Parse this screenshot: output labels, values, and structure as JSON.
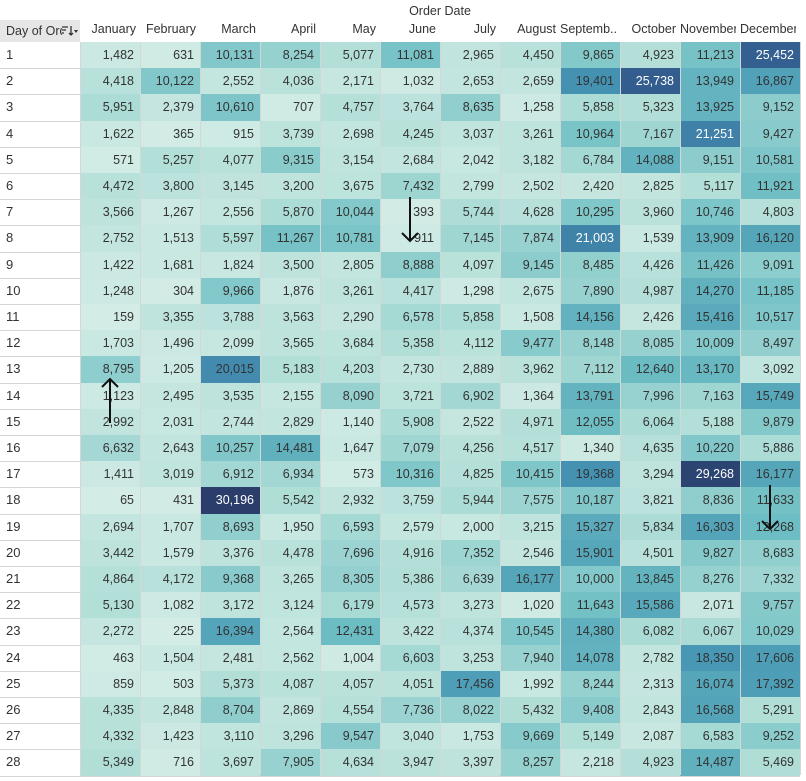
{
  "chart_data": {
    "type": "heatmap",
    "column_group_title": "Order Date",
    "row_header_title": "Day of Order Date",
    "columns": [
      "January",
      "February",
      "March",
      "April",
      "May",
      "June",
      "July",
      "August",
      "Septemb..",
      "October",
      "November",
      "December"
    ],
    "rows": [
      "1",
      "2",
      "3",
      "4",
      "5",
      "6",
      "7",
      "8",
      "9",
      "10",
      "11",
      "12",
      "13",
      "14",
      "15",
      "16",
      "17",
      "18",
      "19",
      "20",
      "21",
      "22",
      "23",
      "24",
      "25",
      "26",
      "27",
      "28"
    ],
    "values": [
      [
        1482,
        631,
        10131,
        8254,
        5077,
        11081,
        2965,
        4450,
        9865,
        4923,
        11213,
        25452
      ],
      [
        4418,
        10122,
        2552,
        4036,
        2171,
        1032,
        2653,
        2659,
        19401,
        25738,
        13949,
        16867
      ],
      [
        5951,
        2379,
        10610,
        707,
        4757,
        3764,
        8635,
        1258,
        5858,
        5323,
        13925,
        9152
      ],
      [
        1622,
        365,
        915,
        3739,
        2698,
        4245,
        3037,
        3261,
        10964,
        7167,
        21251,
        9427
      ],
      [
        571,
        5257,
        4077,
        9315,
        3154,
        2684,
        2042,
        3182,
        6784,
        14088,
        9151,
        10581
      ],
      [
        4472,
        3800,
        3145,
        3200,
        3675,
        7432,
        2799,
        2502,
        2420,
        2825,
        5117,
        11921
      ],
      [
        3566,
        1267,
        2556,
        5870,
        10044,
        393,
        5744,
        4628,
        10295,
        3960,
        10746,
        4803
      ],
      [
        2752,
        1513,
        5597,
        11267,
        10781,
        911,
        7145,
        7874,
        21003,
        1539,
        13909,
        16120
      ],
      [
        1422,
        1681,
        1824,
        3500,
        2805,
        8888,
        4097,
        9145,
        8485,
        4426,
        11426,
        9091
      ],
      [
        1248,
        304,
        9966,
        1876,
        3261,
        4417,
        1298,
        2675,
        7890,
        4987,
        14270,
        11185
      ],
      [
        159,
        3355,
        3788,
        3563,
        2290,
        6578,
        5858,
        1508,
        14156,
        2426,
        15416,
        10517
      ],
      [
        1703,
        1496,
        2099,
        3565,
        3684,
        5358,
        4112,
        9477,
        8148,
        8085,
        10009,
        8497
      ],
      [
        8795,
        1205,
        20015,
        5183,
        4203,
        2730,
        2889,
        3962,
        7112,
        12640,
        13170,
        3092
      ],
      [
        1123,
        2495,
        3535,
        2155,
        8090,
        3721,
        6902,
        1364,
        13791,
        7996,
        7163,
        15749
      ],
      [
        2992,
        2031,
        2744,
        2829,
        1140,
        5908,
        2522,
        4971,
        12055,
        6064,
        5188,
        9879
      ],
      [
        6632,
        2643,
        10257,
        14481,
        1647,
        7079,
        4256,
        4517,
        1340,
        4635,
        10220,
        5886
      ],
      [
        1411,
        3019,
        6912,
        6934,
        573,
        10316,
        4825,
        10415,
        19368,
        3294,
        29268,
        16177
      ],
      [
        65,
        431,
        30196,
        5542,
        2932,
        3759,
        5944,
        7575,
        10187,
        3821,
        8836,
        11633
      ],
      [
        2694,
        1707,
        8693,
        1950,
        6593,
        2579,
        2000,
        3215,
        15327,
        5834,
        16303,
        12268
      ],
      [
        3442,
        1579,
        3376,
        4478,
        7696,
        4916,
        7352,
        2546,
        15901,
        4501,
        9827,
        8683
      ],
      [
        4864,
        4172,
        9368,
        3265,
        8305,
        5386,
        6639,
        16177,
        10000,
        13845,
        8276,
        7332
      ],
      [
        5130,
        1082,
        3172,
        3124,
        6179,
        4573,
        3273,
        1020,
        11643,
        15586,
        2071,
        9757
      ],
      [
        2272,
        225,
        16394,
        2564,
        12431,
        3422,
        4374,
        10545,
        14380,
        6082,
        6067,
        10029
      ],
      [
        463,
        1504,
        2481,
        2562,
        1004,
        6603,
        3253,
        7940,
        14078,
        2782,
        18350,
        17606
      ],
      [
        859,
        503,
        5373,
        4087,
        4057,
        4051,
        17456,
        1992,
        8244,
        2313,
        16074,
        17392
      ],
      [
        4335,
        2848,
        8704,
        2869,
        4554,
        7736,
        8022,
        5432,
        9408,
        2843,
        16568,
        5291
      ],
      [
        4332,
        1423,
        3110,
        3296,
        9547,
        3040,
        1753,
        9669,
        5149,
        2087,
        6583,
        9252
      ],
      [
        5349,
        716,
        3697,
        7905,
        4634,
        3947,
        3397,
        8257,
        2218,
        4923,
        14487,
        5469
      ]
    ],
    "color_scale": {
      "low": "#d4ece6",
      "high": "#2a3d6b"
    },
    "value_range": [
      65,
      30196
    ]
  },
  "annotations": [
    {
      "type": "arrow",
      "direction": "down",
      "row": "7",
      "column": "June"
    },
    {
      "type": "arrow",
      "direction": "up",
      "row": "14",
      "column": "January"
    },
    {
      "type": "arrow",
      "direction": "down",
      "row": "18",
      "column": "December"
    }
  ],
  "icons": {
    "sort": "sort-descending-icon"
  }
}
